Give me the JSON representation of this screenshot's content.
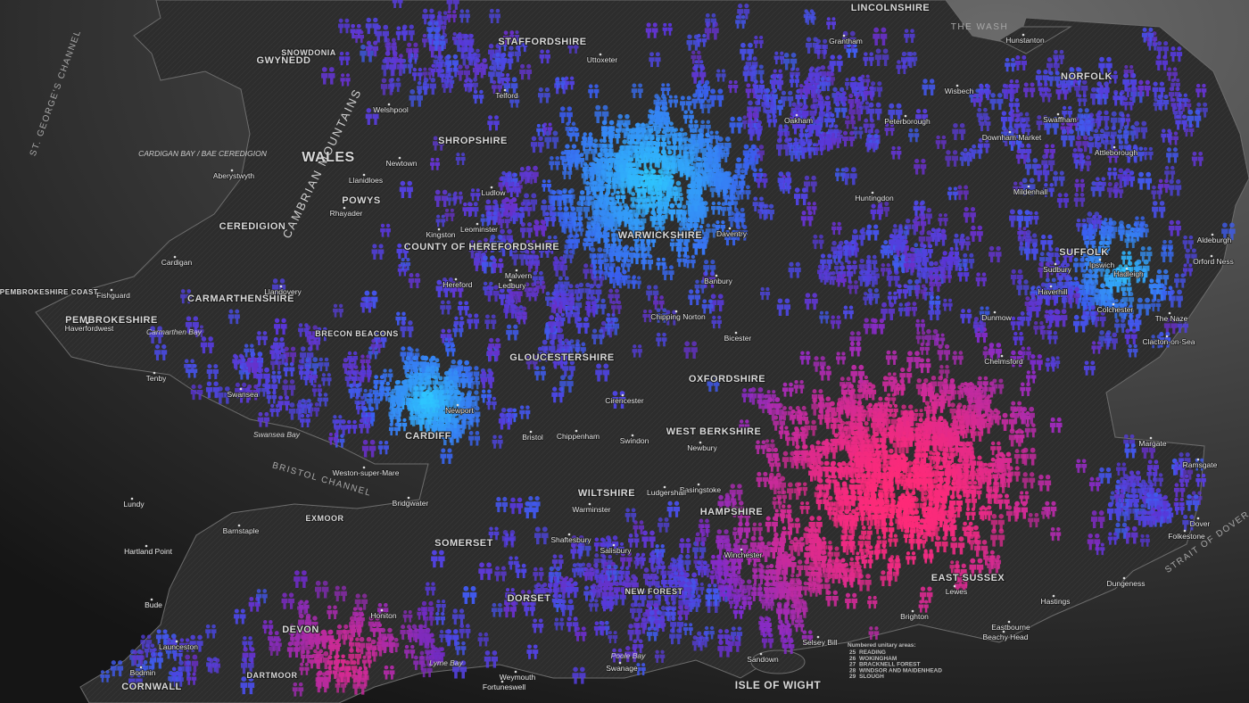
{
  "map": {
    "regions": [
      "WALES",
      "SHROPSHIRE",
      "WARWICKSHIRE",
      "GLOUCESTERSHIRE",
      "OXFORDSHIRE",
      "WILTSHIRE",
      "HAMPSHIRE",
      "SOMERSET",
      "DORSET",
      "DEVON",
      "CORNWALL",
      "NORFOLK",
      "SUFFOLK",
      "EAST SUSSEX",
      "ISLE OF WIGHT",
      "POWYS",
      "CEREDIGION",
      "PEMBROKESHIRE",
      "CARMARTHENSHIRE",
      "GWYNEDD",
      "STAFFORDSHIRE",
      "LINCOLNSHIRE",
      "CARDIFF",
      "COUNTY OF HEREFORDSHIRE",
      "WEST BERKSHIRE",
      "BRECON BEACONS",
      "DARTMOOR",
      "EXMOOR",
      "NEW FOREST",
      "SNOWDONIA",
      "PEMBROKESHIRE COAST"
    ],
    "places": [
      "Cardigan",
      "Aberystwyth",
      "Hereford",
      "Ludlow",
      "Newport",
      "Swansea",
      "Bristol",
      "Weston-super-Mare",
      "Chippenham",
      "Swindon",
      "Salisbury",
      "Basingstoke",
      "Winchester",
      "Peterborough",
      "Ipswich",
      "Colchester",
      "Chelmsford",
      "Margate",
      "Ramsgate",
      "Folkestone",
      "Dover",
      "Hastings",
      "Eastbourne",
      "Lewes",
      "Brighton",
      "Beachy Head",
      "Dungeness",
      "Weymouth",
      "Honiton",
      "Barnstaple",
      "Tenby",
      "Llandovery",
      "Welshpool",
      "Newtown",
      "Telford",
      "Uttoxeter",
      "Grantham",
      "Swaffham",
      "Attleborough",
      "Hunstanton",
      "Leominster",
      "Newbury",
      "Bicester",
      "Oakham",
      "Clacton-on-Sea",
      "Aldeburgh",
      "Orford Ness",
      "The Naze",
      "Lundy",
      "Hartland Point",
      "Bude",
      "Launceston",
      "Bodmin",
      "Swanage",
      "Fortuneswell",
      "Sandown",
      "Selsey Bill",
      "Ludgershall",
      "Warminster",
      "Shaftesbury",
      "Dunmow",
      "Haverfordwest",
      "Fishguard",
      "Rhayader",
      "Llanidloes",
      "Bridgwater",
      "Kingston",
      "Ledbury",
      "Malvern",
      "Cirencester",
      "Chipping Norton",
      "Banbury",
      "Daventry",
      "Huntingdon",
      "Wisbech",
      "Downham Market",
      "Mildenhall",
      "Haverhill",
      "Sudbury",
      "Hadleigh"
    ],
    "water": [
      "ST. GEORGE'S CHANNEL",
      "BRISTOL CHANNEL",
      "CAMBRIAN MOUNTAINS",
      "STRAIT OF DOVER",
      "THE WASH",
      "CARDIGAN BAY / BAE CEREDIGION",
      "Lyme Bay",
      "Swansea Bay",
      "Carmarthen Bay",
      "Poole Bay"
    ],
    "legend": {
      "title": "Numbered unitary areas:",
      "items": [
        {
          "number": 25,
          "name": "READING"
        },
        {
          "number": 26,
          "name": "WOKINGHAM"
        },
        {
          "number": 27,
          "name": "BRACKNELL FOREST"
        },
        {
          "number": 28,
          "name": "WINDSOR AND MAIDENHEAD"
        },
        {
          "number": 29,
          "name": "SLOUGH"
        }
      ]
    }
  }
}
